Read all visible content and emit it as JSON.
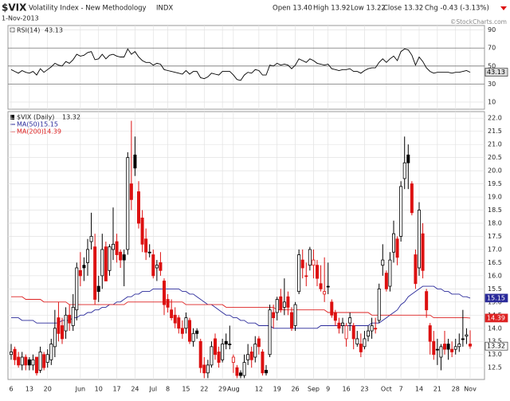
{
  "chart_data": {
    "type": "candlestick",
    "title": "$VIX",
    "subtitle": "Volatility Index - New Methodology",
    "exchange": "INDX",
    "date": "1-Nov-2013",
    "quote": [
      "Open 13.40",
      "High 13.92",
      "Low 13.22",
      "Close 13.32",
      "Chg -0.43 (-3.13%)"
    ],
    "watermark": "©StockCharts.com",
    "categories": [
      "6",
      null,
      null,
      null,
      null,
      "13",
      null,
      null,
      null,
      null,
      "20",
      null,
      null,
      null,
      null,
      null,
      null,
      null,
      null,
      "Jun",
      null,
      null,
      null,
      null,
      "10",
      null,
      null,
      null,
      null,
      "17",
      null,
      null,
      null,
      null,
      "24",
      null,
      null,
      null,
      null,
      "Jul",
      null,
      null,
      null,
      "8",
      null,
      null,
      null,
      null,
      "15",
      null,
      null,
      null,
      null,
      "22",
      null,
      null,
      null,
      null,
      "29",
      null,
      null,
      "Aug",
      null,
      null,
      null,
      null,
      null,
      null,
      "12",
      null,
      null,
      null,
      null,
      "19",
      null,
      null,
      null,
      null,
      "26",
      null,
      null,
      null,
      null,
      "Sep",
      null,
      null,
      null,
      "9",
      null,
      null,
      null,
      null,
      "16",
      null,
      null,
      null,
      null,
      "23",
      null,
      null,
      null,
      null,
      null,
      "Oct",
      null,
      null,
      null,
      "7",
      null,
      null,
      null,
      null,
      "14",
      null,
      null,
      null,
      null,
      "21",
      null,
      null,
      null,
      null,
      "28",
      null,
      null,
      null,
      "Nov"
    ],
    "up_color": "#000000",
    "down_color": "#dd1111",
    "series": [
      {
        "name": "$VIX (Daily)",
        "last_label": "13.32",
        "open": [
          13.0,
          13.2,
          12.9,
          12.6,
          12.9,
          12.8,
          12.6,
          12.9,
          12.4,
          13.0,
          12.7,
          12.8,
          13.3,
          14.4,
          14.1,
          13.9,
          14.5,
          14.1,
          14.7,
          16.2,
          16.4,
          16.5,
          17.3,
          17.1,
          15.6,
          16.0,
          17.1,
          16.2,
          17.0,
          17.3,
          16.9,
          16.8,
          17.0,
          19.5,
          20.6,
          19.2,
          18.2,
          17.4,
          16.9,
          16.8,
          16.3,
          16.5,
          15.8,
          15.1,
          14.7,
          14.5,
          14.4,
          14.0,
          14.0,
          14.3,
          13.5,
          13.9,
          13.5,
          12.6,
          12.3,
          12.6,
          13.6,
          13.1,
          12.8,
          13.5,
          13.4,
          12.7,
          12.5,
          12.3,
          12.2,
          12.8,
          13.1,
          12.9,
          13.6,
          13.1,
          12.4,
          13.0,
          14.6,
          14.6,
          15.2,
          14.8,
          15.2,
          14.6,
          14.1,
          15.4,
          16.6,
          16.0,
          16.4,
          16.4,
          16.4,
          15.7,
          15.3,
          15.6,
          15.0,
          14.6,
          14.2,
          14.1,
          13.6,
          14.2,
          14.1,
          13.4,
          13.4,
          13.3,
          13.7,
          13.9,
          14.0,
          14.3,
          16.4,
          16.1,
          15.6,
          16.9,
          17.4,
          17.5,
          19.7,
          20.6,
          19.5,
          16.8,
          16.3,
          17.6,
          15.4,
          14.1,
          13.5,
          13.2,
          12.9,
          13.4,
          13.4,
          13.2,
          13.2,
          13.3,
          13.6,
          13.7,
          13.4
        ],
        "high": [
          13.4,
          13.3,
          13.1,
          13.1,
          13.0,
          12.9,
          13.0,
          12.9,
          13.3,
          13.1,
          13.2,
          13.6,
          14.7,
          15.0,
          14.4,
          14.8,
          14.9,
          15.3,
          16.5,
          16.9,
          16.7,
          17.4,
          18.4,
          17.6,
          16.0,
          17.6,
          17.3,
          17.2,
          18.6,
          17.6,
          17.0,
          17.0,
          20.7,
          21.9,
          21.3,
          19.6,
          18.5,
          17.8,
          17.2,
          17.0,
          16.6,
          16.9,
          15.9,
          15.3,
          15.1,
          14.8,
          14.5,
          14.3,
          14.6,
          14.4,
          14.0,
          14.0,
          13.6,
          12.9,
          12.8,
          13.5,
          13.8,
          13.3,
          13.6,
          13.8,
          14.1,
          13.0,
          12.6,
          12.4,
          13.0,
          13.4,
          13.3,
          13.7,
          13.7,
          13.2,
          12.6,
          14.9,
          14.9,
          15.2,
          15.5,
          15.9,
          15.4,
          14.8,
          15.0,
          17.0,
          17.0,
          16.5,
          17.1,
          17.0,
          16.6,
          16.4,
          16.7,
          16.5,
          15.1,
          14.7,
          14.4,
          14.4,
          14.2,
          14.6,
          14.2,
          13.9,
          13.8,
          13.9,
          14.1,
          14.4,
          14.4,
          15.7,
          17.2,
          16.2,
          16.9,
          18.1,
          17.5,
          19.6,
          21.3,
          21.0,
          19.6,
          17.0,
          18.8,
          18.0,
          15.5,
          14.2,
          13.9,
          13.6,
          13.4,
          13.9,
          13.6,
          13.5,
          13.6,
          13.8,
          14.7,
          14.0,
          13.92
        ],
        "low": [
          12.8,
          12.6,
          12.5,
          12.4,
          12.4,
          12.4,
          12.4,
          12.2,
          12.3,
          12.4,
          12.5,
          12.6,
          12.9,
          13.5,
          13.4,
          13.6,
          13.9,
          13.9,
          14.3,
          15.6,
          15.8,
          16.0,
          17.0,
          14.9,
          15.0,
          15.5,
          15.8,
          16.0,
          16.6,
          16.5,
          16.3,
          15.6,
          16.8,
          18.5,
          19.8,
          17.8,
          16.9,
          16.6,
          16.7,
          15.9,
          15.8,
          16.0,
          14.5,
          14.6,
          14.3,
          14.0,
          13.8,
          13.6,
          13.8,
          13.4,
          13.3,
          13.6,
          12.3,
          12.1,
          12.1,
          12.5,
          12.8,
          12.5,
          12.7,
          13.2,
          13.2,
          12.3,
          12.1,
          12.1,
          12.1,
          12.6,
          12.5,
          12.7,
          13.0,
          12.2,
          12.2,
          12.9,
          14.0,
          14.3,
          14.6,
          14.5,
          14.5,
          13.9,
          13.9,
          15.3,
          15.9,
          15.6,
          16.2,
          15.9,
          15.6,
          15.4,
          15.0,
          15.3,
          14.4,
          14.1,
          13.8,
          13.8,
          13.3,
          13.9,
          13.2,
          13.3,
          12.9,
          13.2,
          13.5,
          13.6,
          13.8,
          14.2,
          16.0,
          15.4,
          15.4,
          16.5,
          16.4,
          17.3,
          19.3,
          19.3,
          18.3,
          15.5,
          16.0,
          15.9,
          14.4,
          13.0,
          12.8,
          12.6,
          12.4,
          13.0,
          12.8,
          12.9,
          13.0,
          13.1,
          13.3,
          13.4,
          13.22
        ],
        "close": [
          13.1,
          12.8,
          12.6,
          12.9,
          12.6,
          12.6,
          12.8,
          12.3,
          13.1,
          12.5,
          13.0,
          13.4,
          14.0,
          13.8,
          13.6,
          14.5,
          14.2,
          14.8,
          16.3,
          16.0,
          16.3,
          17.0,
          17.5,
          15.1,
          15.4,
          17.0,
          15.8,
          17.1,
          17.2,
          16.8,
          16.6,
          16.6,
          20.5,
          18.9,
          20.1,
          18.0,
          17.2,
          16.9,
          16.9,
          16.0,
          16.4,
          16.2,
          14.9,
          14.8,
          14.4,
          14.2,
          14.0,
          13.8,
          14.4,
          13.5,
          13.8,
          13.8,
          12.5,
          12.3,
          12.6,
          13.3,
          13.0,
          12.7,
          13.4,
          13.4,
          13.4,
          12.9,
          12.2,
          12.2,
          12.7,
          13.0,
          12.8,
          13.4,
          13.3,
          12.3,
          12.3,
          14.7,
          14.4,
          15.1,
          14.7,
          15.0,
          14.8,
          14.0,
          14.9,
          16.8,
          16.3,
          16.0,
          17.0,
          16.6,
          15.9,
          15.5,
          15.4,
          15.6,
          14.5,
          14.3,
          14.0,
          14.2,
          14.1,
          14.4,
          13.6,
          13.6,
          13.1,
          13.6,
          13.9,
          14.1,
          14.0,
          15.5,
          16.6,
          15.5,
          16.6,
          17.6,
          16.7,
          19.4,
          20.3,
          20.3,
          18.4,
          15.7,
          18.5,
          16.2,
          14.7,
          13.5,
          13.0,
          13.2,
          13.3,
          13.2,
          13.2,
          13.1,
          13.3,
          13.4,
          13.6,
          13.75,
          13.32
        ]
      },
      {
        "name": "MA(50)",
        "last_label": "15.15",
        "color": "#2a2a9a",
        "values": [
          14.4,
          14.4,
          14.4,
          14.3,
          14.3,
          14.3,
          14.3,
          14.2,
          14.2,
          14.2,
          14.2,
          14.2,
          14.2,
          14.2,
          14.3,
          14.3,
          14.3,
          14.4,
          14.4,
          14.5,
          14.5,
          14.6,
          14.6,
          14.7,
          14.7,
          14.8,
          14.8,
          14.9,
          14.9,
          15.0,
          15.0,
          15.1,
          15.2,
          15.2,
          15.3,
          15.3,
          15.4,
          15.4,
          15.4,
          15.5,
          15.5,
          15.5,
          15.5,
          15.5,
          15.5,
          15.5,
          15.5,
          15.4,
          15.4,
          15.3,
          15.3,
          15.2,
          15.1,
          15.0,
          14.9,
          14.9,
          14.8,
          14.7,
          14.6,
          14.5,
          14.5,
          14.4,
          14.4,
          14.3,
          14.3,
          14.2,
          14.2,
          14.2,
          14.1,
          14.1,
          14.1,
          14.1,
          14.0,
          14.0,
          14.0,
          14.0,
          14.0,
          14.0,
          14.0,
          14.0,
          14.0,
          14.0,
          14.0,
          14.0,
          14.0,
          14.1,
          14.1,
          14.1,
          14.1,
          14.1,
          14.1,
          14.1,
          14.1,
          14.1,
          14.1,
          14.1,
          14.1,
          14.1,
          14.1,
          14.2,
          14.2,
          14.2,
          14.3,
          14.4,
          14.5,
          14.6,
          14.7,
          14.9,
          15.0,
          15.2,
          15.3,
          15.4,
          15.5,
          15.6,
          15.6,
          15.6,
          15.6,
          15.5,
          15.5,
          15.4,
          15.4,
          15.3,
          15.3,
          15.3,
          15.2,
          15.2,
          15.15
        ]
      },
      {
        "name": "MA(200)",
        "last_label": "14.39",
        "color": "#dd2222",
        "values": [
          15.2,
          15.2,
          15.2,
          15.2,
          15.1,
          15.1,
          15.1,
          15.1,
          15.1,
          15.0,
          15.0,
          15.0,
          15.0,
          15.0,
          15.0,
          15.0,
          14.9,
          14.9,
          14.9,
          14.9,
          14.9,
          14.9,
          14.9,
          14.9,
          14.9,
          14.9,
          14.9,
          14.9,
          14.9,
          14.9,
          14.9,
          14.9,
          15.0,
          15.0,
          15.0,
          15.0,
          15.0,
          15.0,
          15.0,
          15.0,
          15.0,
          15.0,
          15.0,
          15.0,
          15.0,
          15.0,
          15.0,
          15.0,
          14.9,
          14.9,
          14.9,
          14.9,
          14.9,
          14.9,
          14.9,
          14.9,
          14.9,
          14.9,
          14.9,
          14.8,
          14.8,
          14.8,
          14.8,
          14.8,
          14.8,
          14.8,
          14.8,
          14.8,
          14.8,
          14.8,
          14.8,
          14.8,
          14.8,
          14.7,
          14.7,
          14.7,
          14.7,
          14.7,
          14.7,
          14.7,
          14.7,
          14.7,
          14.7,
          14.7,
          14.7,
          14.7,
          14.7,
          14.6,
          14.6,
          14.6,
          14.6,
          14.6,
          14.6,
          14.6,
          14.6,
          14.6,
          14.6,
          14.6,
          14.6,
          14.5,
          14.5,
          14.5,
          14.5,
          14.5,
          14.5,
          14.5,
          14.5,
          14.5,
          14.5,
          14.5,
          14.5,
          14.5,
          14.5,
          14.5,
          14.5,
          14.5,
          14.4,
          14.4,
          14.4,
          14.4,
          14.4,
          14.4,
          14.4,
          14.4,
          14.4,
          14.4,
          14.39
        ]
      }
    ],
    "ylim": [
      12.05,
      22.25
    ],
    "yticks": [
      12.5,
      {
        "value": 13,
        "label": "13.0"
      },
      13.5,
      {
        "value": 14,
        "label": "14.0"
      },
      14.5,
      {
        "value": 15,
        "label": "15.0"
      },
      15.5,
      {
        "value": 16,
        "label": "16.0"
      },
      16.5,
      {
        "value": 17,
        "label": "17.0"
      },
      17.5,
      {
        "value": 18,
        "label": "18.0"
      },
      18.5,
      {
        "value": 19,
        "label": "19.0"
      },
      19.5,
      {
        "value": 20,
        "label": "20.0"
      },
      20.5,
      {
        "value": 21,
        "label": "21.0"
      },
      21.5,
      {
        "value": 22,
        "label": "22.0"
      }
    ],
    "grid": true,
    "indicator": {
      "type": "line",
      "name": "RSI(14)",
      "last_label": "43.13",
      "color": "#000000",
      "values": [
        46,
        44,
        42,
        45,
        43,
        42,
        44,
        40,
        47,
        43,
        46,
        49,
        53,
        51,
        50,
        55,
        53,
        57,
        63,
        61,
        62,
        65,
        66,
        57,
        58,
        63,
        58,
        62,
        63,
        61,
        60,
        60,
        69,
        63,
        66,
        60,
        56,
        54,
        54,
        51,
        53,
        52,
        46,
        45,
        44,
        43,
        42,
        41,
        45,
        41,
        44,
        44,
        37,
        36,
        38,
        42,
        41,
        40,
        44,
        44,
        44,
        40,
        35,
        34,
        40,
        43,
        42,
        46,
        45,
        40,
        40,
        51,
        50,
        53,
        51,
        52,
        51,
        47,
        51,
        58,
        56,
        54,
        58,
        56,
        53,
        52,
        51,
        52,
        47,
        46,
        45,
        46,
        46,
        47,
        44,
        44,
        42,
        45,
        47,
        48,
        48,
        54,
        58,
        54,
        58,
        61,
        56,
        66,
        69,
        68,
        62,
        51,
        60,
        55,
        48,
        44,
        42,
        43,
        43,
        43,
        43,
        42,
        43,
        43,
        44,
        45,
        43.13
      ],
      "ylim": [
        2,
        95
      ],
      "yticks": [
        10,
        30,
        50,
        70,
        90
      ],
      "levels": [
        30,
        50,
        70
      ]
    }
  }
}
